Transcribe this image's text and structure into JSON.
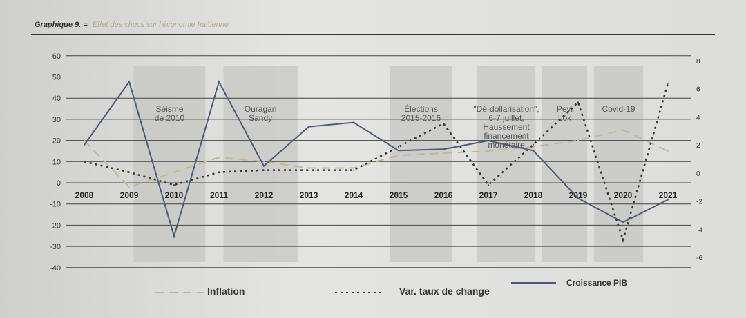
{
  "header": {
    "label": "Graphique 9.",
    "separator": "=",
    "title": "Effet des chocs sur l'économie haïtienne"
  },
  "chart_data": {
    "type": "line",
    "title": "Effet des chocs sur l'économie haïtienne",
    "x": [
      "2008",
      "2009",
      "2010",
      "2011",
      "2012",
      "2013",
      "2014",
      "2015",
      "2016",
      "2017",
      "2018",
      "2019",
      "2020",
      "2021"
    ],
    "y_left": {
      "ticks": [
        60,
        50,
        40,
        30,
        20,
        10,
        0,
        -10,
        -20,
        -30,
        -40
      ],
      "range": [
        -40,
        60
      ]
    },
    "y_right": {
      "ticks": [
        8,
        6,
        4,
        2,
        0,
        -2,
        -4,
        -6
      ],
      "range": [
        -6,
        8
      ]
    },
    "grid": true,
    "legend": "bottom",
    "series": [
      {
        "name": "Inflation",
        "axis": "left",
        "style": "dashed",
        "color": "#c9b48f",
        "values": [
          20,
          -2,
          5,
          12,
          10,
          7,
          7,
          13,
          14,
          15,
          17,
          20,
          25,
          15
        ]
      },
      {
        "name": "Var. taux de change",
        "axis": "left",
        "style": "dotted",
        "color": "#333333",
        "values": [
          10,
          5,
          -1,
          5,
          6,
          6,
          6,
          17,
          28,
          -1,
          18,
          38,
          -27,
          47
        ]
      },
      {
        "name": "Croissance PIB",
        "axis": "right",
        "style": "solid",
        "color": "#4a5a7a",
        "values": [
          2,
          6.5,
          -4.5,
          6.5,
          0.5,
          3.3,
          3.6,
          1.6,
          1.7,
          2.3,
          1.6,
          -1.8,
          -3.5,
          -1.9
        ]
      }
    ],
    "annotations": [
      {
        "text": [
          "Séisme",
          "de 2010"
        ],
        "period": [
          2009.1,
          2010.7
        ]
      },
      {
        "text": [
          "Ouragan",
          "Sandy"
        ],
        "period": [
          2011.1,
          2012.75
        ]
      },
      {
        "text": [
          "Élections",
          "2015-2016"
        ],
        "period": [
          2014.8,
          2016.2
        ]
      },
      {
        "text": [
          "\"Dé-dollarisation\",",
          "6-7 juillet,",
          "Haussement",
          "financement",
          "monétaire"
        ],
        "period": [
          2016.75,
          2018.05
        ]
      },
      {
        "text": [
          "Peyi",
          "Lòk"
        ],
        "period": [
          2018.2,
          2019.2
        ]
      },
      {
        "text": [
          "Covid-19"
        ],
        "period": [
          2019.35,
          2020.45
        ]
      }
    ]
  }
}
